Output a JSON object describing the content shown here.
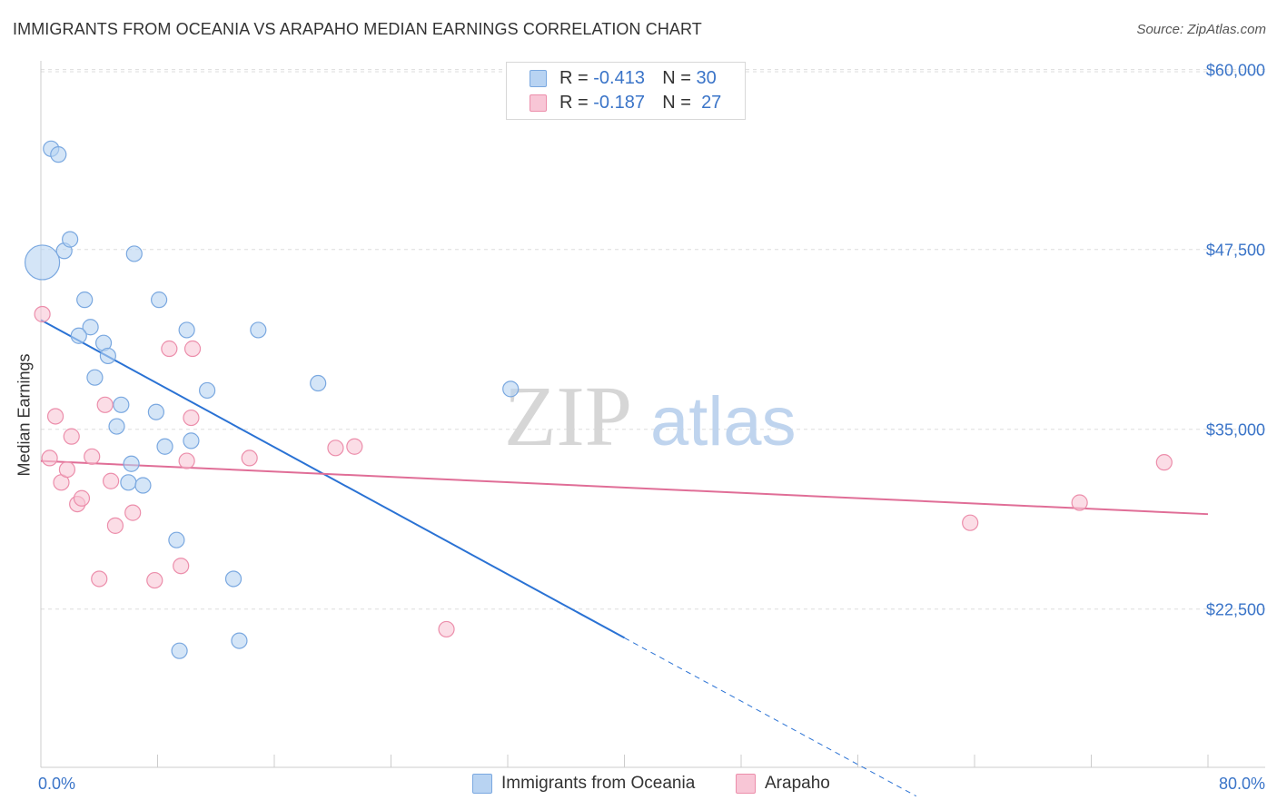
{
  "title": "IMMIGRANTS FROM OCEANIA VS ARAPAHO MEDIAN EARNINGS CORRELATION CHART",
  "source": "Source: ZipAtlas.com",
  "watermark": {
    "zip": "ZIP",
    "atlas": "atlas"
  },
  "legend_top": [
    {
      "r_label": "R =",
      "r_value": "-0.413",
      "n_label": "N =",
      "n_value": "30"
    },
    {
      "r_label": "R =",
      "r_value": "-0.187",
      "n_label": "N =",
      "n_value": "27"
    }
  ],
  "legend_bottom": [
    "Immigrants from Oceania",
    "Arapaho"
  ],
  "colors": {
    "blue_fill": "#b8d3f2",
    "blue_stroke": "#7aa8e0",
    "blue_line": "#2a72d4",
    "pink_fill": "#f8c6d6",
    "pink_stroke": "#ec8eab",
    "pink_line": "#e06e97",
    "axis_label": "#3a74c8",
    "grid": "#dddddd"
  },
  "chart_data": {
    "type": "scatter",
    "title": "IMMIGRANTS FROM OCEANIA VS ARAPAHO MEDIAN EARNINGS CORRELATION CHART",
    "xlabel": "",
    "ylabel": "Median Earnings",
    "xlim": [
      0,
      80
    ],
    "ylim": [
      11500,
      62000
    ],
    "x_tick_labels": [
      "0.0%",
      "80.0%"
    ],
    "y_ticks": [
      {
        "value": 22500,
        "label": "$22,500"
      },
      {
        "value": 35000,
        "label": "$35,000"
      },
      {
        "value": 47500,
        "label": "$47,500"
      },
      {
        "value": 60000,
        "label": "$60,000"
      }
    ],
    "series": [
      {
        "name": "Immigrants from Oceania",
        "color": "blue",
        "r": -0.413,
        "n": 30,
        "points": [
          {
            "x": 0.1,
            "y": 46600,
            "big": true
          },
          {
            "x": 0.7,
            "y": 54500
          },
          {
            "x": 1.2,
            "y": 54100
          },
          {
            "x": 1.6,
            "y": 47400
          },
          {
            "x": 2.0,
            "y": 48200
          },
          {
            "x": 3.0,
            "y": 44000
          },
          {
            "x": 3.4,
            "y": 42100
          },
          {
            "x": 2.6,
            "y": 41500
          },
          {
            "x": 4.3,
            "y": 41000
          },
          {
            "x": 4.6,
            "y": 40100
          },
          {
            "x": 3.7,
            "y": 38600
          },
          {
            "x": 5.5,
            "y": 36700
          },
          {
            "x": 5.2,
            "y": 35200
          },
          {
            "x": 6.2,
            "y": 32600
          },
          {
            "x": 6.0,
            "y": 31300
          },
          {
            "x": 7.0,
            "y": 31100
          },
          {
            "x": 7.9,
            "y": 36200
          },
          {
            "x": 8.5,
            "y": 33800
          },
          {
            "x": 8.1,
            "y": 44000
          },
          {
            "x": 10.0,
            "y": 41900
          },
          {
            "x": 10.3,
            "y": 34200
          },
          {
            "x": 11.4,
            "y": 37700
          },
          {
            "x": 9.3,
            "y": 27300
          },
          {
            "x": 9.5,
            "y": 19600
          },
          {
            "x": 13.2,
            "y": 24600
          },
          {
            "x": 13.6,
            "y": 20300
          },
          {
            "x": 14.9,
            "y": 41900
          },
          {
            "x": 19.0,
            "y": 38200
          },
          {
            "x": 32.2,
            "y": 37800
          },
          {
            "x": 6.4,
            "y": 47200
          }
        ],
        "trend": {
          "x1": 0,
          "y1": 42600,
          "x2": 40,
          "y2": 20500,
          "dash_to_x": 60,
          "dash_to_y": 9500
        }
      },
      {
        "name": "Arapaho",
        "color": "pink",
        "r": -0.187,
        "n": 27,
        "points": [
          {
            "x": 0.1,
            "y": 43000
          },
          {
            "x": 0.6,
            "y": 33000
          },
          {
            "x": 1.0,
            "y": 35900
          },
          {
            "x": 1.4,
            "y": 31300
          },
          {
            "x": 1.8,
            "y": 32200
          },
          {
            "x": 2.1,
            "y": 34500
          },
          {
            "x": 2.5,
            "y": 29800
          },
          {
            "x": 2.8,
            "y": 30200
          },
          {
            "x": 3.5,
            "y": 33100
          },
          {
            "x": 4.0,
            "y": 24600
          },
          {
            "x": 4.4,
            "y": 36700
          },
          {
            "x": 4.8,
            "y": 31400
          },
          {
            "x": 5.1,
            "y": 28300
          },
          {
            "x": 6.3,
            "y": 29200
          },
          {
            "x": 7.8,
            "y": 24500
          },
          {
            "x": 8.8,
            "y": 40600
          },
          {
            "x": 9.6,
            "y": 25500
          },
          {
            "x": 10.0,
            "y": 32800
          },
          {
            "x": 10.3,
            "y": 35800
          },
          {
            "x": 10.4,
            "y": 40600
          },
          {
            "x": 14.3,
            "y": 33000
          },
          {
            "x": 20.2,
            "y": 33700
          },
          {
            "x": 21.5,
            "y": 33800
          },
          {
            "x": 27.8,
            "y": 21100
          },
          {
            "x": 63.7,
            "y": 28500
          },
          {
            "x": 71.2,
            "y": 29900
          },
          {
            "x": 77.0,
            "y": 32700
          }
        ],
        "trend": {
          "x1": 0,
          "y1": 32800,
          "x2": 80,
          "y2": 29100
        }
      }
    ]
  }
}
